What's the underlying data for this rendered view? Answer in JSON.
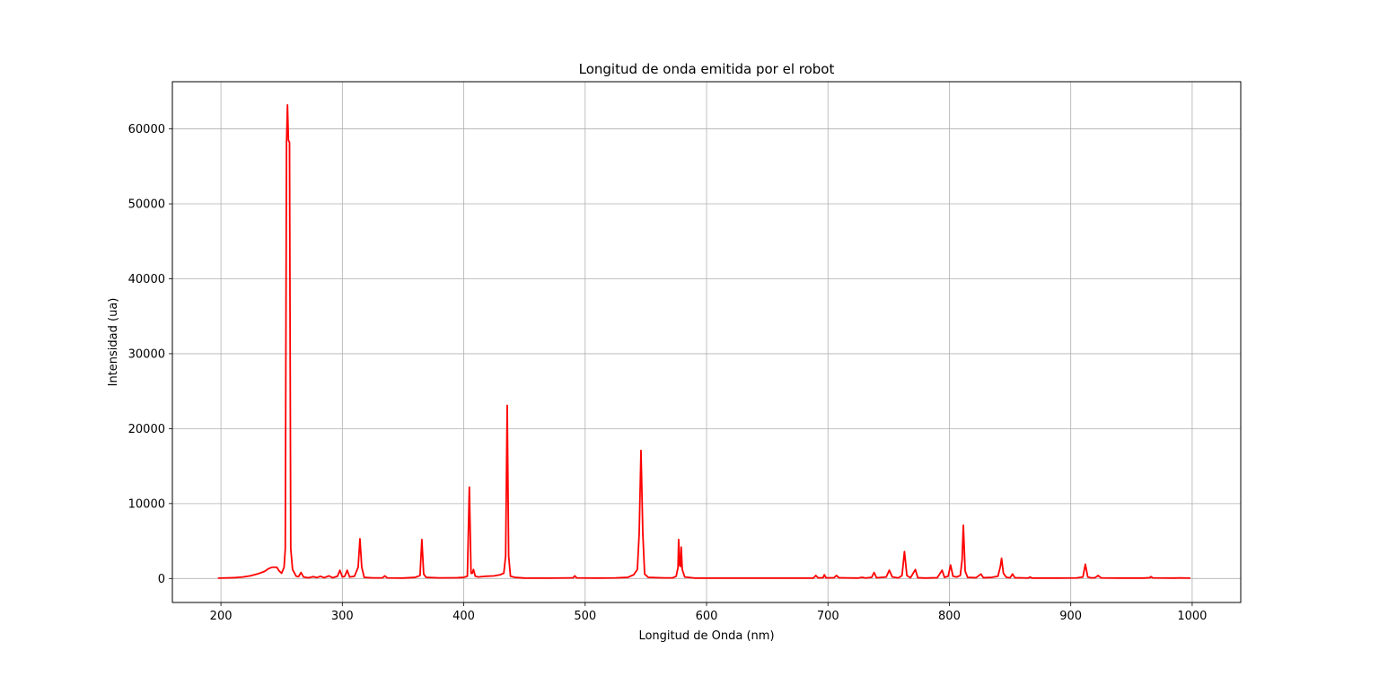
{
  "chart_data": {
    "type": "line",
    "title": "Longitud de onda emitida por el robot",
    "xlabel": "Longitud de Onda (nm)",
    "ylabel": "Intensidad (ua)",
    "xlim": [
      160,
      1040
    ],
    "ylim": [
      -3200,
      66300
    ],
    "xticks": [
      200,
      300,
      400,
      500,
      600,
      700,
      800,
      900,
      1000
    ],
    "yticks": [
      0,
      10000,
      20000,
      30000,
      40000,
      50000,
      60000
    ],
    "grid": true,
    "legend": "none",
    "series": [
      {
        "color": "#ff0000",
        "points": [
          [
            198,
            50
          ],
          [
            205,
            80
          ],
          [
            212,
            120
          ],
          [
            218,
            200
          ],
          [
            224,
            350
          ],
          [
            230,
            600
          ],
          [
            236,
            950
          ],
          [
            239,
            1300
          ],
          [
            242,
            1500
          ],
          [
            246,
            1500
          ],
          [
            248,
            1000
          ],
          [
            250,
            700
          ],
          [
            252,
            1500
          ],
          [
            253,
            4000
          ],
          [
            254,
            58000
          ],
          [
            254.8,
            63200
          ],
          [
            255.6,
            58500
          ],
          [
            256.5,
            58200
          ],
          [
            257.5,
            4000
          ],
          [
            259,
            1200
          ],
          [
            262,
            300
          ],
          [
            264,
            250
          ],
          [
            266,
            800
          ],
          [
            268,
            200
          ],
          [
            272,
            100
          ],
          [
            276,
            250
          ],
          [
            279,
            120
          ],
          [
            282,
            300
          ],
          [
            285,
            100
          ],
          [
            289,
            350
          ],
          [
            292,
            100
          ],
          [
            296,
            300
          ],
          [
            298,
            1100
          ],
          [
            300,
            200
          ],
          [
            302,
            300
          ],
          [
            304,
            1100
          ],
          [
            306,
            200
          ],
          [
            310,
            300
          ],
          [
            313,
            1500
          ],
          [
            314.5,
            5300
          ],
          [
            316,
            1500
          ],
          [
            318,
            150
          ],
          [
            325,
            80
          ],
          [
            333,
            80
          ],
          [
            335,
            350
          ],
          [
            337,
            80
          ],
          [
            350,
            60
          ],
          [
            360,
            150
          ],
          [
            364,
            400
          ],
          [
            365.5,
            5200
          ],
          [
            367,
            600
          ],
          [
            369,
            150
          ],
          [
            380,
            80
          ],
          [
            395,
            100
          ],
          [
            400,
            150
          ],
          [
            403,
            300
          ],
          [
            404.6,
            12200
          ],
          [
            406,
            700
          ],
          [
            407,
            700
          ],
          [
            408,
            1200
          ],
          [
            409.5,
            300
          ],
          [
            412,
            200
          ],
          [
            418,
            300
          ],
          [
            425,
            350
          ],
          [
            430,
            500
          ],
          [
            433,
            700
          ],
          [
            434.5,
            3000
          ],
          [
            435.8,
            23100
          ],
          [
            437,
            3000
          ],
          [
            438.5,
            300
          ],
          [
            442,
            150
          ],
          [
            450,
            60
          ],
          [
            470,
            50
          ],
          [
            490,
            80
          ],
          [
            491.5,
            350
          ],
          [
            493,
            80
          ],
          [
            510,
            60
          ],
          [
            525,
            80
          ],
          [
            535,
            150
          ],
          [
            540,
            500
          ],
          [
            543,
            1200
          ],
          [
            544.5,
            6000
          ],
          [
            546,
            17100
          ],
          [
            547.5,
            6000
          ],
          [
            549,
            600
          ],
          [
            552,
            150
          ],
          [
            565,
            80
          ],
          [
            572,
            80
          ],
          [
            575,
            300
          ],
          [
            576.5,
            1500
          ],
          [
            577,
            5200
          ],
          [
            577.8,
            1800
          ],
          [
            578.5,
            1600
          ],
          [
            579.1,
            4200
          ],
          [
            580,
            1200
          ],
          [
            582,
            200
          ],
          [
            590,
            60
          ],
          [
            610,
            50
          ],
          [
            640,
            50
          ],
          [
            670,
            50
          ],
          [
            688,
            60
          ],
          [
            690,
            400
          ],
          [
            692,
            80
          ],
          [
            696,
            100
          ],
          [
            697,
            500
          ],
          [
            698.5,
            80
          ],
          [
            705,
            100
          ],
          [
            707,
            400
          ],
          [
            709,
            100
          ],
          [
            715,
            80
          ],
          [
            725,
            60
          ],
          [
            728,
            150
          ],
          [
            731,
            60
          ],
          [
            736,
            150
          ],
          [
            738,
            800
          ],
          [
            740,
            100
          ],
          [
            748,
            200
          ],
          [
            750.5,
            1100
          ],
          [
            753,
            200
          ],
          [
            758,
            80
          ],
          [
            761,
            400
          ],
          [
            763,
            3600
          ],
          [
            765,
            400
          ],
          [
            768,
            100
          ],
          [
            772,
            1200
          ],
          [
            774,
            100
          ],
          [
            780,
            60
          ],
          [
            790,
            100
          ],
          [
            794,
            1100
          ],
          [
            796,
            150
          ],
          [
            799,
            300
          ],
          [
            801,
            1800
          ],
          [
            803,
            300
          ],
          [
            806,
            200
          ],
          [
            809,
            400
          ],
          [
            810.5,
            2500
          ],
          [
            811.5,
            7100
          ],
          [
            813,
            1000
          ],
          [
            815,
            150
          ],
          [
            822,
            100
          ],
          [
            826,
            600
          ],
          [
            828,
            100
          ],
          [
            835,
            150
          ],
          [
            840,
            300
          ],
          [
            842,
            1600
          ],
          [
            843,
            2700
          ],
          [
            844.5,
            700
          ],
          [
            847,
            150
          ],
          [
            850,
            100
          ],
          [
            852,
            600
          ],
          [
            854,
            100
          ],
          [
            865,
            60
          ],
          [
            866.5,
            200
          ],
          [
            868,
            60
          ],
          [
            890,
            60
          ],
          [
            905,
            80
          ],
          [
            910,
            200
          ],
          [
            912,
            1900
          ],
          [
            914,
            200
          ],
          [
            917,
            80
          ],
          [
            920,
            100
          ],
          [
            922.5,
            400
          ],
          [
            925,
            80
          ],
          [
            940,
            60
          ],
          [
            960,
            60
          ],
          [
            965,
            100
          ],
          [
            966,
            250
          ],
          [
            967.5,
            80
          ],
          [
            985,
            60
          ],
          [
            990,
            80
          ],
          [
            998,
            50
          ]
        ]
      }
    ]
  }
}
